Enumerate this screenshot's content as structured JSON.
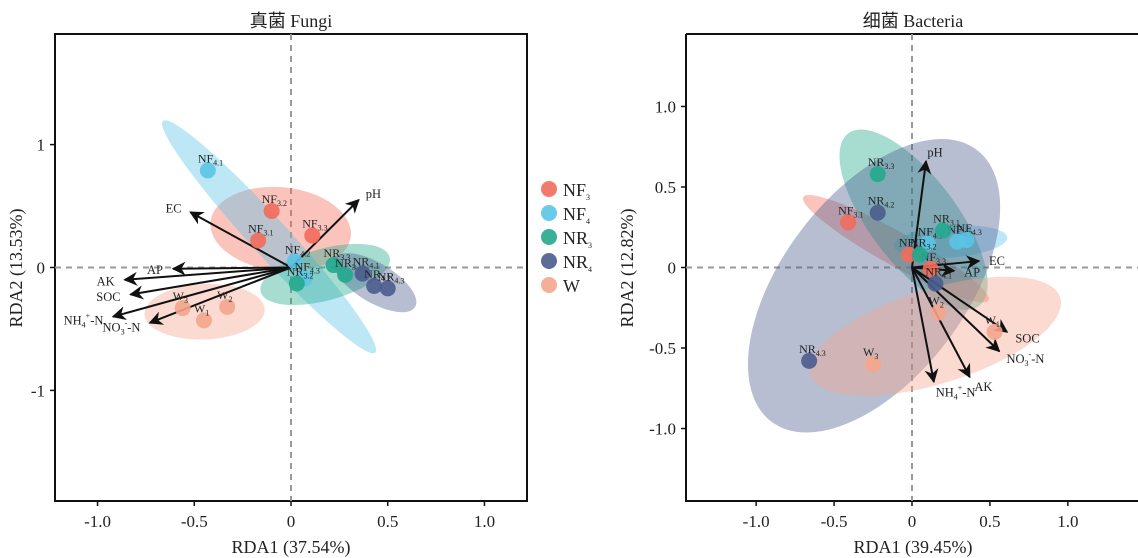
{
  "colors": {
    "NF3": "#F26B5B",
    "NF4": "#5BC4E6",
    "NR3": "#23A98D",
    "NR4": "#4A5C8E",
    "W": "#F4A58C"
  },
  "legend": {
    "items": [
      {
        "key": "NF3",
        "base": "NF",
        "sub": "3"
      },
      {
        "key": "NF4",
        "base": "NF",
        "sub": "4"
      },
      {
        "key": "NR3",
        "base": "NR",
        "sub": "3"
      },
      {
        "key": "NR4",
        "base": "NR",
        "sub": "4"
      },
      {
        "key": "W",
        "base": "W",
        "sub": ""
      }
    ]
  },
  "chart_data": [
    {
      "type": "scatter",
      "title": "真菌 Fungi",
      "xlabel": "RDA1 (37.54%)",
      "ylabel": "RDA2 (13.53%)",
      "xlim": [
        -1.22,
        1.22
      ],
      "ylim": [
        -1.9,
        1.9
      ],
      "xticks": [
        -1.0,
        -0.5,
        0,
        0.5,
        1.0
      ],
      "xticklabels": [
        "-1.0",
        "-0.5",
        "0",
        "0.5",
        "1.0"
      ],
      "yticks": [
        -1,
        0,
        1
      ],
      "yticklabels": [
        "-1",
        "0",
        "1"
      ],
      "groups": [
        {
          "key": "NF3",
          "points": [
            {
              "base": "NF",
              "sub": "3.2",
              "x": -0.1,
              "y": 0.46
            },
            {
              "base": "NF",
              "sub": "3.1",
              "x": -0.17,
              "y": 0.22
            },
            {
              "base": "NF",
              "sub": "3.3",
              "x": 0.11,
              "y": 0.26
            }
          ]
        },
        {
          "key": "NF4",
          "points": [
            {
              "base": "NF",
              "sub": "4.1",
              "x": -0.43,
              "y": 0.79
            },
            {
              "base": "NF",
              "sub": "4.2",
              "x": 0.02,
              "y": 0.05
            },
            {
              "base": "NF",
              "sub": "4.3",
              "x": 0.07,
              "y": -0.09
            }
          ]
        },
        {
          "key": "NR3",
          "points": [
            {
              "base": "NR",
              "sub": "3.2",
              "x": 0.03,
              "y": -0.13
            },
            {
              "base": "NR",
              "sub": "3.3",
              "x": 0.22,
              "y": 0.02
            },
            {
              "base": "NR",
              "sub": "3.1",
              "x": 0.28,
              "y": -0.06
            }
          ]
        },
        {
          "key": "NR4",
          "points": [
            {
              "base": "NR",
              "sub": "4.1",
              "x": 0.37,
              "y": -0.05
            },
            {
              "base": "NR",
              "sub": "4.2",
              "x": 0.43,
              "y": -0.15
            },
            {
              "base": "NR",
              "sub": "4.3",
              "x": 0.5,
              "y": -0.17
            }
          ]
        },
        {
          "key": "W",
          "points": [
            {
              "base": "W",
              "sub": "3",
              "x": -0.56,
              "y": -0.33
            },
            {
              "base": "W",
              "sub": "2",
              "x": -0.33,
              "y": -0.32
            },
            {
              "base": "W",
              "sub": "1",
              "x": -0.45,
              "y": -0.43
            }
          ]
        }
      ],
      "vectors": [
        {
          "base": "pH",
          "sup": "",
          "sub2": "",
          "x": 0.35,
          "y": 0.55
        },
        {
          "base": "EC",
          "sup": "",
          "sub2": "",
          "x": -0.52,
          "y": 0.45
        },
        {
          "base": "AP",
          "sup": "",
          "sub2": "",
          "x": -0.61,
          "y": -0.01
        },
        {
          "base": "AK",
          "sup": "",
          "sub2": "",
          "x": -0.86,
          "y": -0.1
        },
        {
          "base": "SOC",
          "sup": "",
          "sub2": "",
          "x": -0.83,
          "y": -0.22
        },
        {
          "base": "NH",
          "sup": "+",
          "sub2": "4",
          "x": -0.92,
          "y": -0.4
        },
        {
          "base": "NO",
          "sup": "-",
          "sub2": "3",
          "x": -0.73,
          "y": -0.45
        }
      ]
    },
    {
      "type": "scatter",
      "title": "细菌 Bacteria",
      "xlabel": "RDA1 (39.45%)",
      "ylabel": "RDA2 (12.82%)",
      "xlim": [
        -1.45,
        1.45
      ],
      "ylim": [
        -1.45,
        1.45
      ],
      "xticks": [
        -1.0,
        -0.5,
        0,
        0.5,
        1.0
      ],
      "xticklabels": [
        "-1.0",
        "-0.5",
        "0",
        "0.5",
        "1.0"
      ],
      "yticks": [
        1.0,
        0.5,
        0,
        -0.5,
        -1.0
      ],
      "yticklabels": [
        "1.0",
        "0.5",
        "0",
        "-0.5",
        "-1.0"
      ],
      "groups": [
        {
          "key": "NF3",
          "points": [
            {
              "base": "NF",
              "sub": "3.1",
              "x": -0.41,
              "y": 0.28
            },
            {
              "base": "NF",
              "sub": "3.2",
              "x": -0.02,
              "y": 0.08
            },
            {
              "base": "NF",
              "sub": "3.3",
              "x": 0.12,
              "y": -0.01
            }
          ]
        },
        {
          "key": "NF4",
          "points": [
            {
              "base": "NF",
              "sub": "4.1",
              "x": 0.1,
              "y": 0.15
            },
            {
              "base": "NF",
              "sub": "4.2",
              "x": 0.29,
              "y": 0.16
            },
            {
              "base": "NF",
              "sub": "4.3",
              "x": 0.35,
              "y": 0.17
            }
          ]
        },
        {
          "key": "NR3",
          "points": [
            {
              "base": "NR",
              "sub": "3.3",
              "x": -0.22,
              "y": 0.58
            },
            {
              "base": "NR",
              "sub": "3.1",
              "x": 0.2,
              "y": 0.23
            },
            {
              "base": "NR",
              "sub": "3.2",
              "x": 0.05,
              "y": 0.08
            }
          ]
        },
        {
          "key": "NR4",
          "points": [
            {
              "base": "NR",
              "sub": "4.2",
              "x": -0.22,
              "y": 0.34
            },
            {
              "base": "NR",
              "sub": "4.1",
              "x": 0.15,
              "y": -0.1
            },
            {
              "base": "NR",
              "sub": "4.3",
              "x": -0.66,
              "y": -0.58
            }
          ]
        },
        {
          "key": "W",
          "points": [
            {
              "base": "W",
              "sub": "3",
              "x": -0.25,
              "y": -0.6
            },
            {
              "base": "W",
              "sub": "2",
              "x": 0.17,
              "y": -0.28
            },
            {
              "base": "W",
              "sub": "1",
              "x": 0.53,
              "y": -0.4
            }
          ]
        }
      ],
      "vectors": [
        {
          "base": "pH",
          "sup": "",
          "sub2": "",
          "x": 0.09,
          "y": 0.66
        },
        {
          "base": "EC",
          "sup": "",
          "sub2": "",
          "x": 0.43,
          "y": 0.04
        },
        {
          "base": "AP",
          "sup": "",
          "sub2": "",
          "x": 0.27,
          "y": -0.02
        },
        {
          "base": "SOC",
          "sup": "",
          "sub2": "",
          "x": 0.61,
          "y": -0.4
        },
        {
          "base": "NO",
          "sup": "-",
          "sub2": "3",
          "x": 0.56,
          "y": -0.52
        },
        {
          "base": "AK",
          "sup": "",
          "sub2": "",
          "x": 0.37,
          "y": -0.68
        },
        {
          "base": "NH",
          "sup": "+",
          "sub2": "4",
          "x": 0.14,
          "y": -0.71
        }
      ]
    }
  ]
}
